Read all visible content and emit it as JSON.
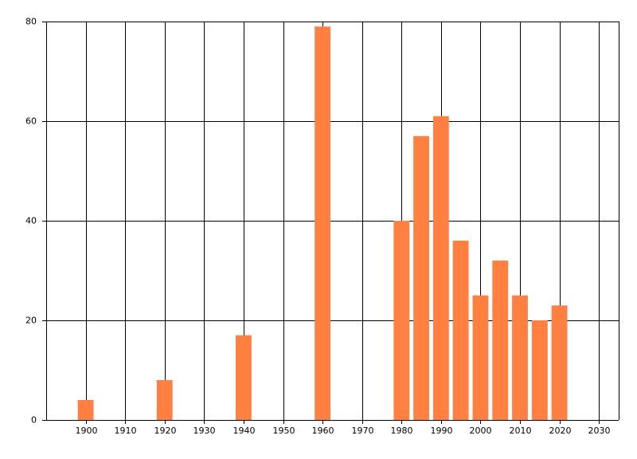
{
  "chart_data": {
    "type": "bar",
    "x": [
      1900,
      1920,
      1940,
      1960,
      1980,
      1985,
      1990,
      1995,
      2000,
      2005,
      2010,
      2015,
      2020
    ],
    "values": [
      4,
      8,
      17,
      79,
      40,
      57,
      61,
      36,
      25,
      32,
      25,
      20,
      23
    ],
    "color": "#ff8040",
    "xlim": [
      1890,
      2035
    ],
    "xticks": [
      1900,
      1910,
      1920,
      1930,
      1940,
      1950,
      1960,
      1970,
      1980,
      1990,
      2000,
      2010,
      2020,
      2030
    ],
    "ylim": [
      0,
      80
    ],
    "yticks": [
      0,
      20,
      40,
      60,
      80
    ],
    "grid": true
  }
}
